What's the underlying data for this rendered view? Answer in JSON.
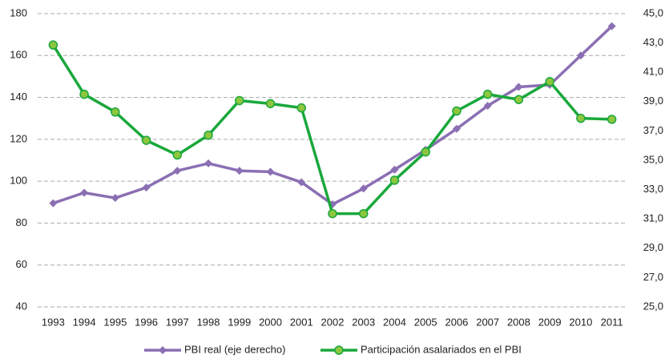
{
  "chart_data": {
    "type": "line",
    "categories": [
      "1993",
      "1994",
      "1995",
      "1996",
      "1997",
      "1998",
      "1999",
      "2000",
      "2001",
      "2002",
      "2003",
      "2004",
      "2005",
      "2006",
      "2007",
      "2008",
      "2009",
      "2010",
      "2011"
    ],
    "series": [
      {
        "name": "PBI real (eje derecho)",
        "color": "#8b6fb3",
        "marker": "diamond",
        "values": [
          89.5,
          94.5,
          92,
          97,
          105,
          108.5,
          105,
          104.5,
          99.5,
          89,
          96.5,
          105.5,
          115,
          125,
          136,
          145,
          146,
          160,
          174
        ]
      },
      {
        "name": "Participación asalariados en el PBI",
        "color": "#1aa83c",
        "marker": "circle",
        "marker_fill": "#8dc63f",
        "axis": "y2",
        "values": [
          42.86,
          39.5,
          38.29,
          36.36,
          35.36,
          36.71,
          39.07,
          38.86,
          38.57,
          31.36,
          31.36,
          33.64,
          35.57,
          38.36,
          39.5,
          39.14,
          40.36,
          37.86,
          37.79
        ]
      }
    ],
    "ylim": [
      40,
      180
    ],
    "yticks": [
      40,
      60,
      80,
      100,
      120,
      140,
      160,
      180
    ],
    "y2lim": [
      25,
      45
    ],
    "y2ticks": [
      {
        "value": 25,
        "label": "25,0"
      },
      {
        "value": 27,
        "label": "27,0"
      },
      {
        "value": 29,
        "label": "29,0"
      },
      {
        "value": 31,
        "label": "31,0"
      },
      {
        "value": 33,
        "label": "33,0"
      },
      {
        "value": 35,
        "label": "35,0"
      },
      {
        "value": 37,
        "label": "37,0"
      },
      {
        "value": 39,
        "label": "39,0"
      },
      {
        "value": 41,
        "label": "41,0"
      },
      {
        "value": 43,
        "label": "43,0"
      },
      {
        "value": 45,
        "label": "45,0"
      }
    ],
    "grid": true,
    "legend": "bottom"
  }
}
